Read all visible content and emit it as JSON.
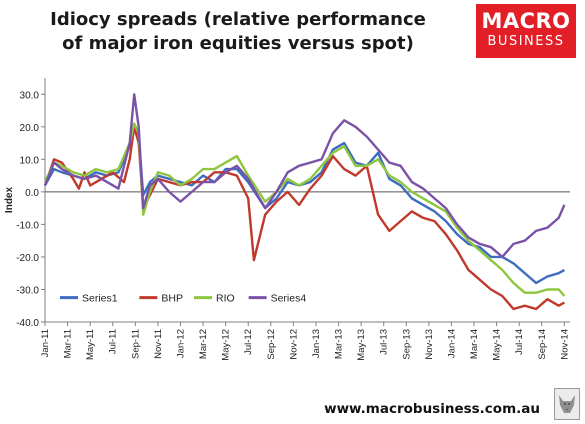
{
  "header": {
    "title_line1": "Idiocy spreads (relative performance",
    "title_line2": "of major iron equities versus spot)"
  },
  "logo": {
    "line1": "MACRO",
    "line2": "BUSINESS",
    "color": "#e21f26"
  },
  "footer": {
    "website": "www.macrobusiness.com.au"
  },
  "chart_data": {
    "type": "line",
    "ylabel": "Index",
    "ylim": [
      -40,
      35
    ],
    "yticks": [
      30,
      20,
      10,
      0,
      -10,
      -20,
      -30,
      -40
    ],
    "ytick_labels": [
      "30.0",
      "20.0",
      "10.0",
      "0.0",
      "-10.0",
      "-20.0",
      "-30.0",
      "-40.0"
    ],
    "xticks": [
      "Jan-11",
      "Mar-11",
      "May-11",
      "Jul-11",
      "Sep-11",
      "Nov-11",
      "Jan-12",
      "Mar-12",
      "May-12",
      "Jul-12",
      "Sep-12",
      "Nov-12",
      "Jan-13",
      "Mar-13",
      "May-13",
      "Jul-13",
      "Sep-13",
      "Nov-13",
      "Jan-14",
      "Mar-14",
      "May-14",
      "Jul-14",
      "Sep-14",
      "Nov-14"
    ],
    "x_range_months": [
      0,
      46.5
    ],
    "grid": false,
    "legend_position": "bottom-left",
    "series": [
      {
        "name": "Series1",
        "color": "#3d6cc0",
        "points": [
          [
            0,
            2
          ],
          [
            0.8,
            7
          ],
          [
            1.5,
            6
          ],
          [
            2.5,
            5
          ],
          [
            3.5,
            4
          ],
          [
            4.5,
            6
          ],
          [
            5.5,
            5
          ],
          [
            6.5,
            6
          ],
          [
            7.5,
            14
          ],
          [
            7.9,
            20
          ],
          [
            8.3,
            17
          ],
          [
            8.7,
            -1
          ],
          [
            9.3,
            3
          ],
          [
            10,
            5
          ],
          [
            11,
            4
          ],
          [
            12,
            3
          ],
          [
            13,
            2
          ],
          [
            14,
            5
          ],
          [
            15,
            3
          ],
          [
            16,
            7
          ],
          [
            17,
            7
          ],
          [
            18,
            3
          ],
          [
            19.5,
            -5
          ],
          [
            20.5,
            -2
          ],
          [
            21.5,
            3
          ],
          [
            22.5,
            2
          ],
          [
            23.5,
            3
          ],
          [
            24.5,
            6
          ],
          [
            25.5,
            13
          ],
          [
            26.5,
            15
          ],
          [
            27.5,
            9
          ],
          [
            28.5,
            8
          ],
          [
            29.5,
            12
          ],
          [
            30.5,
            4
          ],
          [
            31.5,
            2
          ],
          [
            32.5,
            -2
          ],
          [
            33.5,
            -4
          ],
          [
            34.5,
            -6
          ],
          [
            35.5,
            -9
          ],
          [
            36.5,
            -13
          ],
          [
            37.5,
            -16
          ],
          [
            38.5,
            -17
          ],
          [
            39.5,
            -20
          ],
          [
            40.5,
            -20
          ],
          [
            41.5,
            -22
          ],
          [
            42.5,
            -25
          ],
          [
            43.5,
            -28
          ],
          [
            44.5,
            -26
          ],
          [
            45.5,
            -25
          ],
          [
            46,
            -24
          ]
        ]
      },
      {
        "name": "BHP",
        "color": "#c0392b",
        "points": [
          [
            0,
            2
          ],
          [
            0.8,
            10
          ],
          [
            1.5,
            9
          ],
          [
            2.5,
            4
          ],
          [
            3,
            1
          ],
          [
            3.5,
            6
          ],
          [
            4,
            2
          ],
          [
            5,
            4
          ],
          [
            6,
            6
          ],
          [
            7,
            3
          ],
          [
            7.5,
            10
          ],
          [
            7.9,
            20
          ],
          [
            8.3,
            15
          ],
          [
            8.7,
            -5
          ],
          [
            9.3,
            -1
          ],
          [
            10,
            4
          ],
          [
            11,
            3
          ],
          [
            12,
            2
          ],
          [
            13,
            3
          ],
          [
            14,
            3
          ],
          [
            15,
            6
          ],
          [
            16,
            6
          ],
          [
            17,
            5
          ],
          [
            18,
            -2
          ],
          [
            18.5,
            -21
          ],
          [
            19.5,
            -7
          ],
          [
            20.5,
            -3
          ],
          [
            21.5,
            0
          ],
          [
            22.5,
            -4
          ],
          [
            23.5,
            1
          ],
          [
            24.5,
            5
          ],
          [
            25.5,
            11
          ],
          [
            26.5,
            7
          ],
          [
            27.5,
            5
          ],
          [
            28.5,
            8
          ],
          [
            29.5,
            -7
          ],
          [
            30.5,
            -12
          ],
          [
            31.5,
            -9
          ],
          [
            32.5,
            -6
          ],
          [
            33.5,
            -8
          ],
          [
            34.5,
            -9
          ],
          [
            35.5,
            -13
          ],
          [
            36.5,
            -18
          ],
          [
            37.5,
            -24
          ],
          [
            38.5,
            -27
          ],
          [
            39.5,
            -30
          ],
          [
            40.5,
            -32
          ],
          [
            41.5,
            -36
          ],
          [
            42.5,
            -35
          ],
          [
            43.5,
            -36
          ],
          [
            44.5,
            -33
          ],
          [
            45.5,
            -35
          ],
          [
            46,
            -34
          ]
        ]
      },
      {
        "name": "RIO",
        "color": "#8dc63f",
        "points": [
          [
            0,
            3
          ],
          [
            0.8,
            9
          ],
          [
            1.5,
            8
          ],
          [
            2.5,
            6
          ],
          [
            3.5,
            5
          ],
          [
            4.5,
            7
          ],
          [
            5.5,
            6
          ],
          [
            6.5,
            7
          ],
          [
            7.5,
            15
          ],
          [
            7.9,
            21
          ],
          [
            8.3,
            18
          ],
          [
            8.7,
            -7
          ],
          [
            9.3,
            0
          ],
          [
            10,
            6
          ],
          [
            11,
            5
          ],
          [
            12,
            2
          ],
          [
            13,
            4
          ],
          [
            14,
            7
          ],
          [
            15,
            7
          ],
          [
            16,
            9
          ],
          [
            17,
            11
          ],
          [
            18,
            5
          ],
          [
            19.5,
            -3
          ],
          [
            20.5,
            0
          ],
          [
            21.5,
            4
          ],
          [
            22.5,
            2
          ],
          [
            23.5,
            4
          ],
          [
            24.5,
            8
          ],
          [
            25.5,
            12
          ],
          [
            26.5,
            14
          ],
          [
            27.5,
            8
          ],
          [
            28.5,
            8
          ],
          [
            29.5,
            10
          ],
          [
            30.5,
            5
          ],
          [
            31.5,
            3
          ],
          [
            32.5,
            0
          ],
          [
            33.5,
            -2
          ],
          [
            34.5,
            -4
          ],
          [
            35.5,
            -6
          ],
          [
            36.5,
            -11
          ],
          [
            37.5,
            -15
          ],
          [
            38.5,
            -18
          ],
          [
            39.5,
            -21
          ],
          [
            40.5,
            -24
          ],
          [
            41.5,
            -28
          ],
          [
            42.5,
            -31
          ],
          [
            43.5,
            -31
          ],
          [
            44.5,
            -30
          ],
          [
            45.5,
            -30
          ],
          [
            46,
            -32
          ]
        ]
      },
      {
        "name": "Series4",
        "color": "#7a52a8",
        "points": [
          [
            0,
            2
          ],
          [
            0.8,
            9
          ],
          [
            1.5,
            7
          ],
          [
            2.5,
            5
          ],
          [
            3.5,
            4
          ],
          [
            4.5,
            5
          ],
          [
            5.5,
            3
          ],
          [
            6.5,
            1
          ],
          [
            7.5,
            15
          ],
          [
            7.9,
            30
          ],
          [
            8.3,
            20
          ],
          [
            8.7,
            -5
          ],
          [
            9.3,
            2
          ],
          [
            10,
            4
          ],
          [
            11,
            0
          ],
          [
            12,
            -3
          ],
          [
            13,
            0
          ],
          [
            14,
            3
          ],
          [
            15,
            3
          ],
          [
            16,
            6
          ],
          [
            17,
            8
          ],
          [
            18,
            4
          ],
          [
            19.5,
            -5
          ],
          [
            20.5,
            0
          ],
          [
            21.5,
            6
          ],
          [
            22.5,
            8
          ],
          [
            23.5,
            9
          ],
          [
            24.5,
            10
          ],
          [
            25.5,
            18
          ],
          [
            26.5,
            22
          ],
          [
            27.5,
            20
          ],
          [
            28.5,
            17
          ],
          [
            29.5,
            13
          ],
          [
            30.5,
            9
          ],
          [
            31.5,
            8
          ],
          [
            32.5,
            3
          ],
          [
            33.5,
            1
          ],
          [
            34.5,
            -2
          ],
          [
            35.5,
            -5
          ],
          [
            36.5,
            -10
          ],
          [
            37.5,
            -14
          ],
          [
            38.5,
            -16
          ],
          [
            39.5,
            -17
          ],
          [
            40.5,
            -20
          ],
          [
            41.5,
            -16
          ],
          [
            42.5,
            -15
          ],
          [
            43.5,
            -12
          ],
          [
            44.5,
            -11
          ],
          [
            45.5,
            -8
          ],
          [
            46,
            -4
          ]
        ]
      }
    ]
  }
}
